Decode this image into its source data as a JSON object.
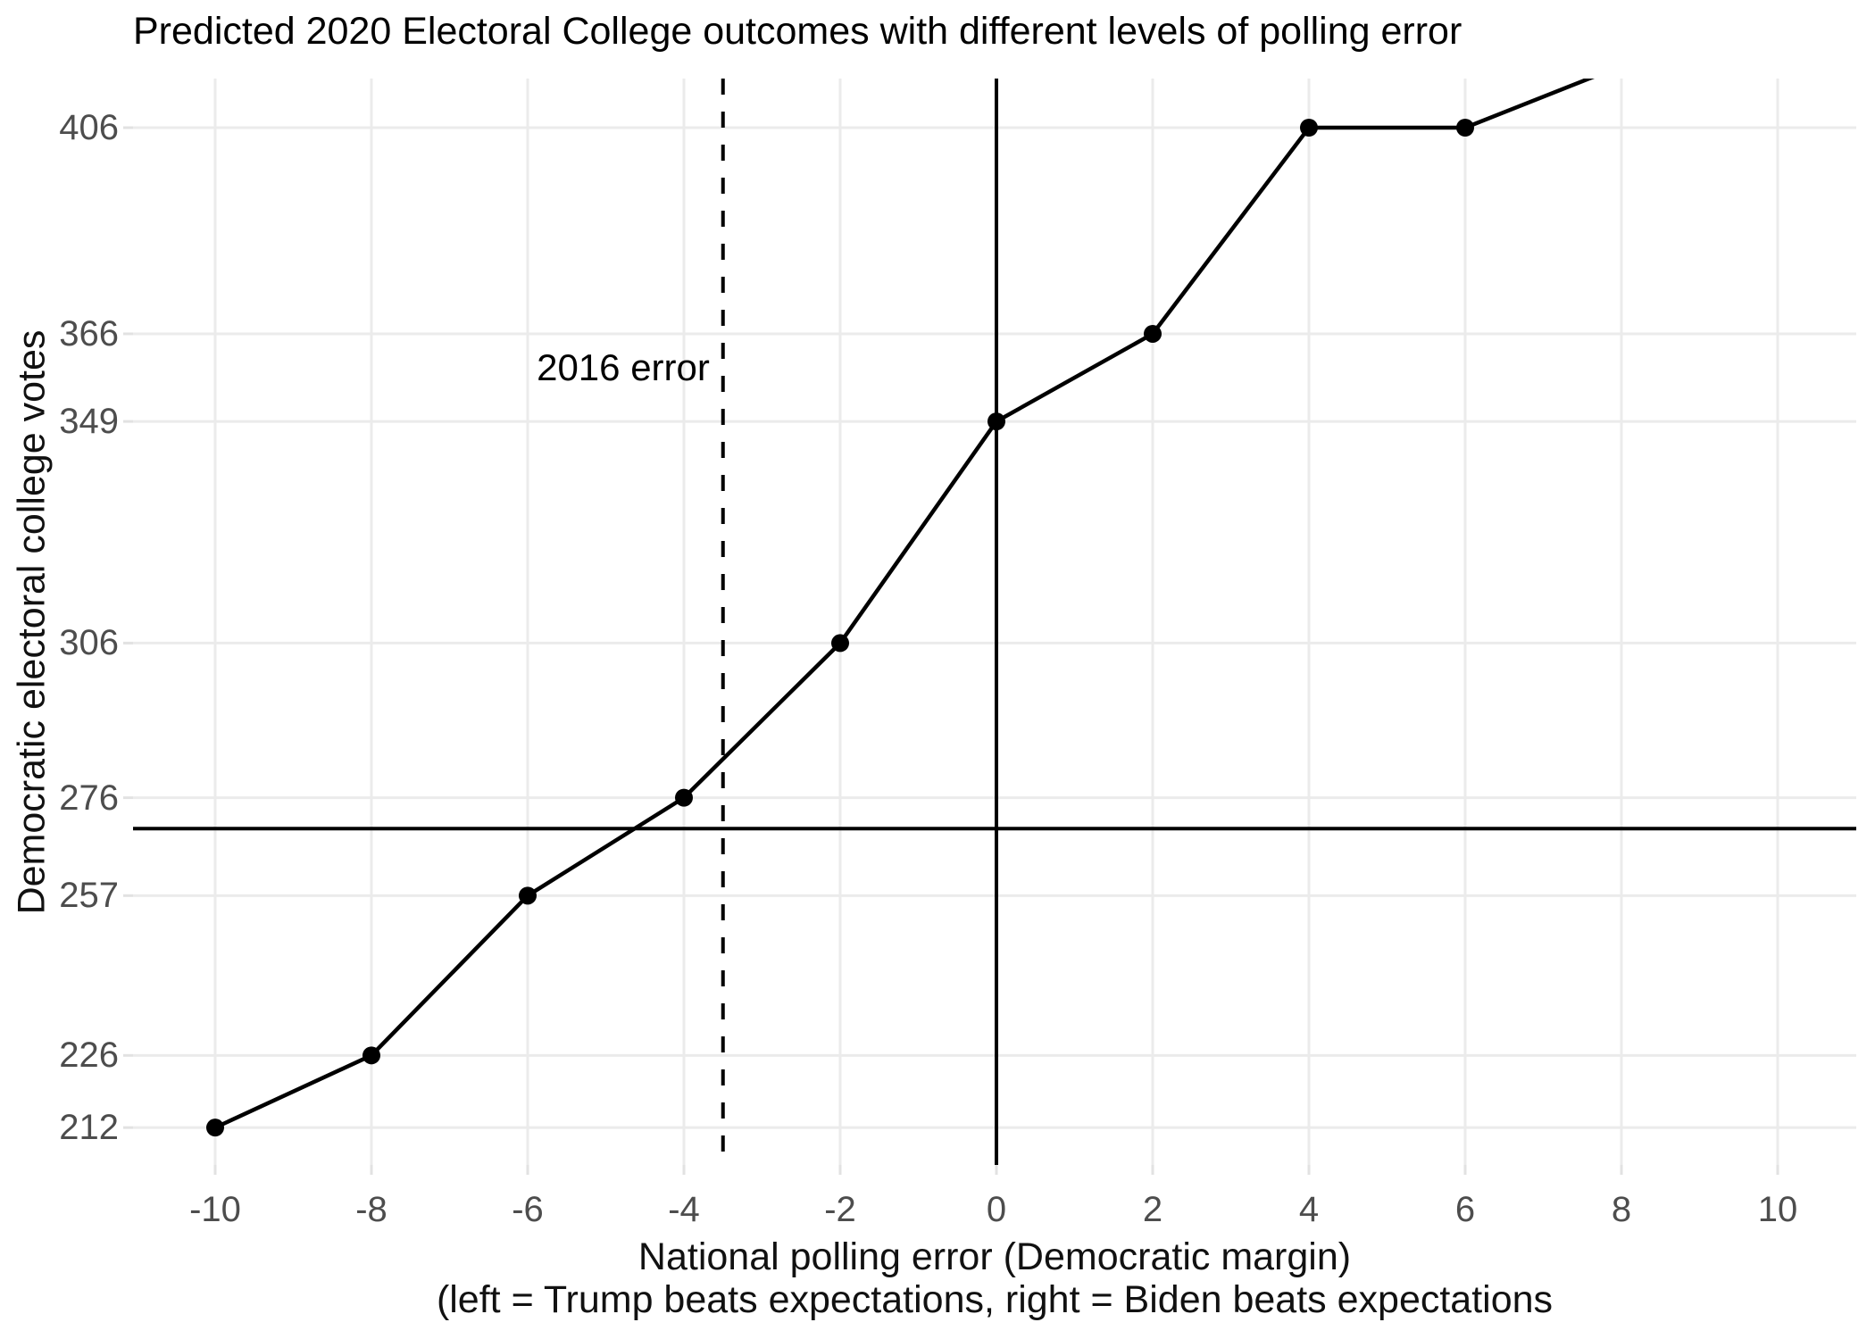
{
  "chart_data": {
    "type": "line",
    "title": "Predicted 2020 Electoral College outcomes with different levels of polling error",
    "x_axis": {
      "label_line1": "National polling error (Democratic margin)",
      "label_line2": "(left = Trump beats expectations, right = Biden beats expectations",
      "ticks": [
        -10,
        -8,
        -6,
        -4,
        -2,
        0,
        2,
        4,
        6,
        8,
        10
      ],
      "range": [
        -11.05,
        11.0
      ],
      "grid": true
    },
    "y_axis": {
      "label": "Democratic electoral college votes",
      "ticks": [
        212,
        226,
        257,
        276,
        306,
        349,
        366,
        406
      ],
      "range": [
        204.5,
        415.5
      ],
      "grid": true
    },
    "series": [
      {
        "name": "predicted-electoral-votes",
        "color": "#000000",
        "points": [
          {
            "x": -10,
            "y": 212
          },
          {
            "x": -8,
            "y": 226
          },
          {
            "x": -6,
            "y": 257
          },
          {
            "x": -4,
            "y": 276
          },
          {
            "x": -2,
            "y": 306
          },
          {
            "x": 0,
            "y": 349
          },
          {
            "x": 2,
            "y": 366
          },
          {
            "x": 4,
            "y": 406
          },
          {
            "x": 6,
            "y": 406
          }
        ],
        "clipped_extension_point": {
          "x": 8,
          "y": 418
        }
      }
    ],
    "reference_lines": {
      "majority_hline": {
        "y": 270,
        "style": "solid"
      },
      "zero_vline": {
        "x": 0,
        "style": "solid"
      },
      "error_2016_vline": {
        "x": -3.5,
        "style": "dashed"
      }
    },
    "annotation": {
      "text": "2016 error",
      "x": -3.67,
      "y": 359.4,
      "align": "right"
    },
    "colors": {
      "gridline": "#EBEBEB",
      "tick_mark": "#E2E2E2",
      "tick_text": "#4D4D4D",
      "line": "#000000",
      "reference": "#000000",
      "title_text": "#000000",
      "axis_title_text": "#111111"
    }
  }
}
